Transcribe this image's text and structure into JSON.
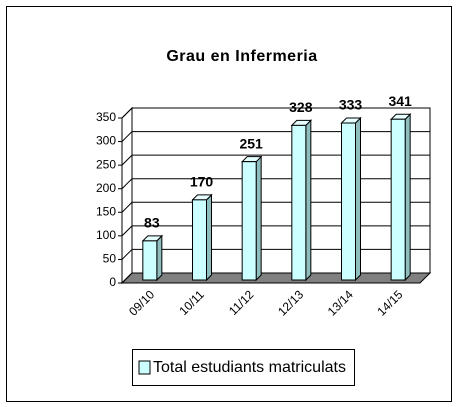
{
  "chart_data": {
    "type": "bar",
    "title": "Grau en Infermeria",
    "categories": [
      "09/10",
      "10/11",
      "11/12",
      "12/13",
      "13/14",
      "14/15"
    ],
    "series": [
      {
        "name": "Total estudiants matriculats",
        "color": "#ccffff",
        "values": [
          83,
          170,
          251,
          328,
          333,
          341
        ]
      }
    ],
    "ylim": [
      0,
      350
    ],
    "yticks": [
      0,
      50,
      100,
      150,
      200,
      250,
      300,
      350
    ],
    "grid": true,
    "legend": "bottom"
  }
}
